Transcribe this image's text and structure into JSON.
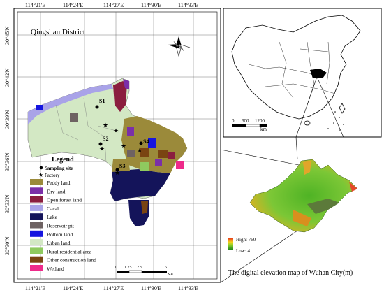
{
  "district_title": "Qingshan District",
  "top_ticks": [
    "114°21'E",
    "114°24'E",
    "114°27'E",
    "114°30'E",
    "114°33'E"
  ],
  "bottom_ticks": [
    "114°21'E",
    "114°24'E",
    "114°27'E",
    "114°30'E",
    "114°33'E"
  ],
  "left_ticks": [
    "30°45'N",
    "30°42'N",
    "30°39'N",
    "30°36'N",
    "30°33'N",
    "30°30'N"
  ],
  "sites": [
    "S1",
    "S2",
    "S3",
    "S4"
  ],
  "legend": {
    "title": "Legend",
    "sampling_site": "Sampling site",
    "factory": "Factory",
    "items": [
      {
        "label": "Peddy land",
        "color": "#9b8a3a"
      },
      {
        "label": "Dry land",
        "color": "#7b2fa8"
      },
      {
        "label": "Open forest land",
        "color": "#8b1e3f"
      },
      {
        "label": "Cacal",
        "color": "#a9a3e8"
      },
      {
        "label": "Lake",
        "color": "#14145a"
      },
      {
        "label": "Reservoir pit",
        "color": "#6e6262"
      },
      {
        "label": "Bottom land",
        "color": "#1515e0"
      },
      {
        "label": "Urban land",
        "color": "#d3e8c4"
      },
      {
        "label": "Rural residential area",
        "color": "#8fca5f"
      },
      {
        "label": "Other construction land",
        "color": "#7a4412"
      },
      {
        "label": "Wetland",
        "color": "#ee2a8a"
      }
    ]
  },
  "scale_bar": {
    "labels": [
      "0",
      "1.25",
      "2.5",
      "5"
    ],
    "unit": "km"
  },
  "china_scale": {
    "labels": [
      "0",
      "600",
      "1200"
    ],
    "unit": "km"
  },
  "dem": {
    "high_label": "High: 760",
    "low_label": "Low: 4",
    "caption": "The digital elevation map of Wuhan City(m)"
  }
}
